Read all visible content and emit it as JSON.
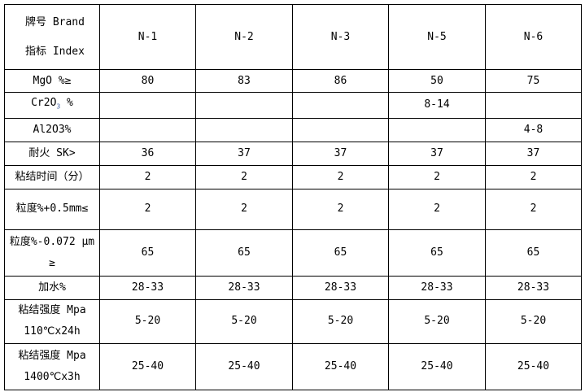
{
  "header": {
    "brand": "牌号 Brand",
    "index": "指标 Index",
    "grades": [
      "N-1",
      "N-2",
      "N-3",
      "N-5",
      "N-6"
    ]
  },
  "rows": [
    {
      "label": "MgO %≥",
      "values": [
        "80",
        "83",
        "86",
        "50",
        "75"
      ]
    },
    {
      "label_main": "Cr2O",
      "label_sub": "3",
      "label_tail": " %",
      "values": [
        "",
        "",
        "",
        "8-14",
        ""
      ]
    },
    {
      "label": "Al2O3%",
      "values": [
        "",
        "",
        "",
        "",
        "4-8"
      ]
    },
    {
      "label": "耐火 SK>",
      "values": [
        "36",
        "37",
        "37",
        "37",
        "37"
      ]
    },
    {
      "label": "粘结时间（分）",
      "values": [
        "2",
        "2",
        "2",
        "2",
        "2"
      ]
    },
    {
      "label": "粒度%+0.5mm≤",
      "values": [
        "2",
        "2",
        "2",
        "2",
        "2"
      ]
    },
    {
      "label": "粒度%-0.072 μm",
      "label2": "≥",
      "values": [
        "65",
        "65",
        "65",
        "65",
        "65"
      ]
    },
    {
      "label": "加水%",
      "values": [
        "28-33",
        "28-33",
        "28-33",
        "28-33",
        "28-33"
      ]
    },
    {
      "label": "粘结强度 Mpa",
      "label2": "110℃x24h",
      "values": [
        "5-20",
        "5-20",
        "5-20",
        "5-20",
        "5-20"
      ]
    },
    {
      "label": "粘结强度 Mpa",
      "label2": "1400℃x3h",
      "values": [
        "25-40",
        "25-40",
        "25-40",
        "25-40",
        "25-40"
      ]
    }
  ]
}
